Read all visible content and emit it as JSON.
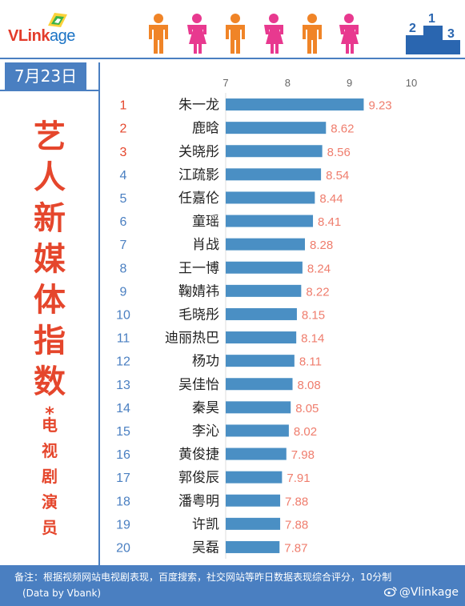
{
  "brand": {
    "logo_prefix": "VLink",
    "logo_suffix": "age",
    "accent": "#e5462c",
    "primary": "#4a7fc1",
    "bar_color": "#4a8fc4"
  },
  "date": "7月23日",
  "title_chars": [
    "艺",
    "人",
    "新",
    "媒",
    "体",
    "指",
    "数"
  ],
  "title_star": "*",
  "subtitle_chars": [
    "电",
    "视",
    "剧",
    "演",
    "员"
  ],
  "podium": {
    "first": "1",
    "second": "2",
    "third": "3"
  },
  "footer": {
    "note": "备注：根据视频网站电视剧表现，百度搜索，社交网站等昨日数据表现综合评分，10分制",
    "source": "(Data by Vbank)",
    "weibo": "@Vlinkage"
  },
  "chart_data": {
    "type": "bar",
    "orientation": "horizontal",
    "x_ticks": [
      "7",
      "8",
      "9",
      "10"
    ],
    "xlim": [
      7,
      10
    ],
    "grid": false,
    "ranks": [
      "1",
      "2",
      "3",
      "4",
      "5",
      "6",
      "7",
      "8",
      "9",
      "10",
      "11",
      "12",
      "13",
      "14",
      "15",
      "16",
      "17",
      "18",
      "19",
      "20"
    ],
    "categories": [
      "朱一龙",
      "鹿晗",
      "关晓彤",
      "江疏影",
      "任嘉伦",
      "童瑶",
      "肖战",
      "王一博",
      "鞠婧祎",
      "毛晓彤",
      "迪丽热巴",
      "杨功",
      "吴佳怡",
      "秦昊",
      "李沁",
      "黄俊捷",
      "郭俊辰",
      "潘粤明",
      "许凯",
      "吴磊"
    ],
    "values": [
      9.23,
      8.62,
      8.56,
      8.54,
      8.44,
      8.41,
      8.28,
      8.24,
      8.22,
      8.15,
      8.14,
      8.11,
      8.08,
      8.05,
      8.02,
      7.98,
      7.91,
      7.88,
      7.88,
      7.87
    ],
    "value_labels": [
      "9.23",
      "8.62",
      "8.56",
      "8.54",
      "8.44",
      "8.41",
      "8.28",
      "8.24",
      "8.22",
      "8.15",
      "8.14",
      "8.11",
      "8.08",
      "8.05",
      "8.02",
      "7.98",
      "7.91",
      "7.88",
      "7.88",
      "7.87"
    ]
  }
}
